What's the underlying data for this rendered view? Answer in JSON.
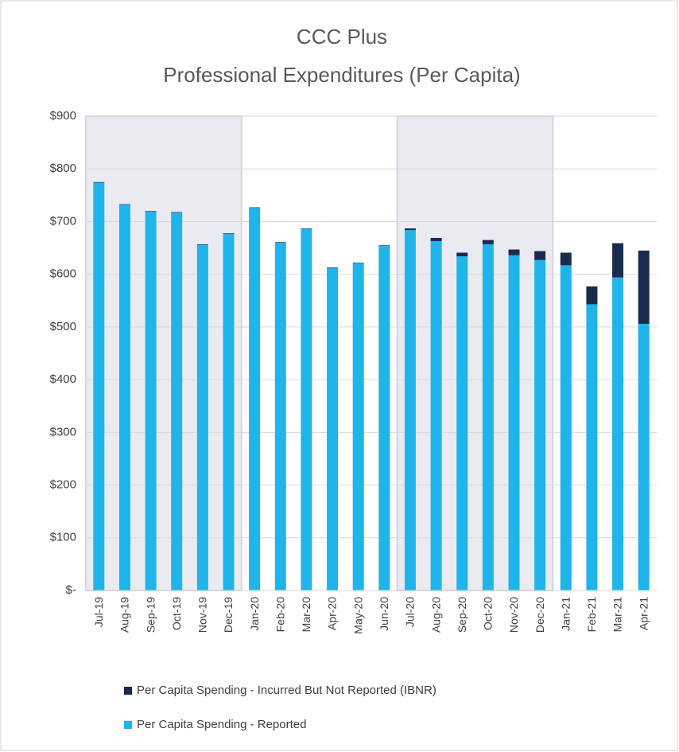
{
  "chart_data": {
    "type": "stacked_bar",
    "title": [
      "CCC Plus",
      "Professional Expenditures (Per Capita)"
    ],
    "categories": [
      "Jul-19",
      "Aug-19",
      "Sep-19",
      "Oct-19",
      "Nov-19",
      "Dec-19",
      "Jan-20",
      "Feb-20",
      "Mar-20",
      "Apr-20",
      "May-20",
      "Jun-20",
      "Jul-20",
      "Aug-20",
      "Sep-20",
      "Oct-20",
      "Nov-20",
      "Dec-20",
      "Jan-21",
      "Feb-21",
      "Mar-21",
      "Apr-21"
    ],
    "series": [
      {
        "name": "Per Capita Spending - Reported",
        "color": "#1fb4ea",
        "values": [
          774,
          732,
          719,
          717,
          656,
          677,
          726,
          660,
          686,
          612,
          621,
          654,
          684,
          663,
          634,
          657,
          636,
          627,
          617,
          543,
          594,
          506
        ]
      },
      {
        "name": "Per Capita Spending - Incurred But Not Reported (IBNR)",
        "color": "#1b2b4d",
        "values": [
          1,
          1,
          1,
          1,
          1,
          1,
          1,
          1,
          1,
          1,
          1,
          1,
          3,
          6,
          7,
          8,
          11,
          17,
          24,
          34,
          65,
          139
        ]
      }
    ],
    "ylim": [
      0,
      900
    ],
    "yticks": [
      {
        "value": 0,
        "label": "$-"
      },
      {
        "value": 100,
        "label": "$100"
      },
      {
        "value": 200,
        "label": "$200"
      },
      {
        "value": 300,
        "label": "$300"
      },
      {
        "value": 400,
        "label": "$400"
      },
      {
        "value": 500,
        "label": "$500"
      },
      {
        "value": 600,
        "label": "$600"
      },
      {
        "value": 700,
        "label": "$700"
      },
      {
        "value": 800,
        "label": "$800"
      },
      {
        "value": 900,
        "label": "$900"
      }
    ],
    "grid": true,
    "shaded_bands": [
      [
        0,
        5
      ],
      [
        12,
        17
      ]
    ],
    "legend": "bottom"
  }
}
